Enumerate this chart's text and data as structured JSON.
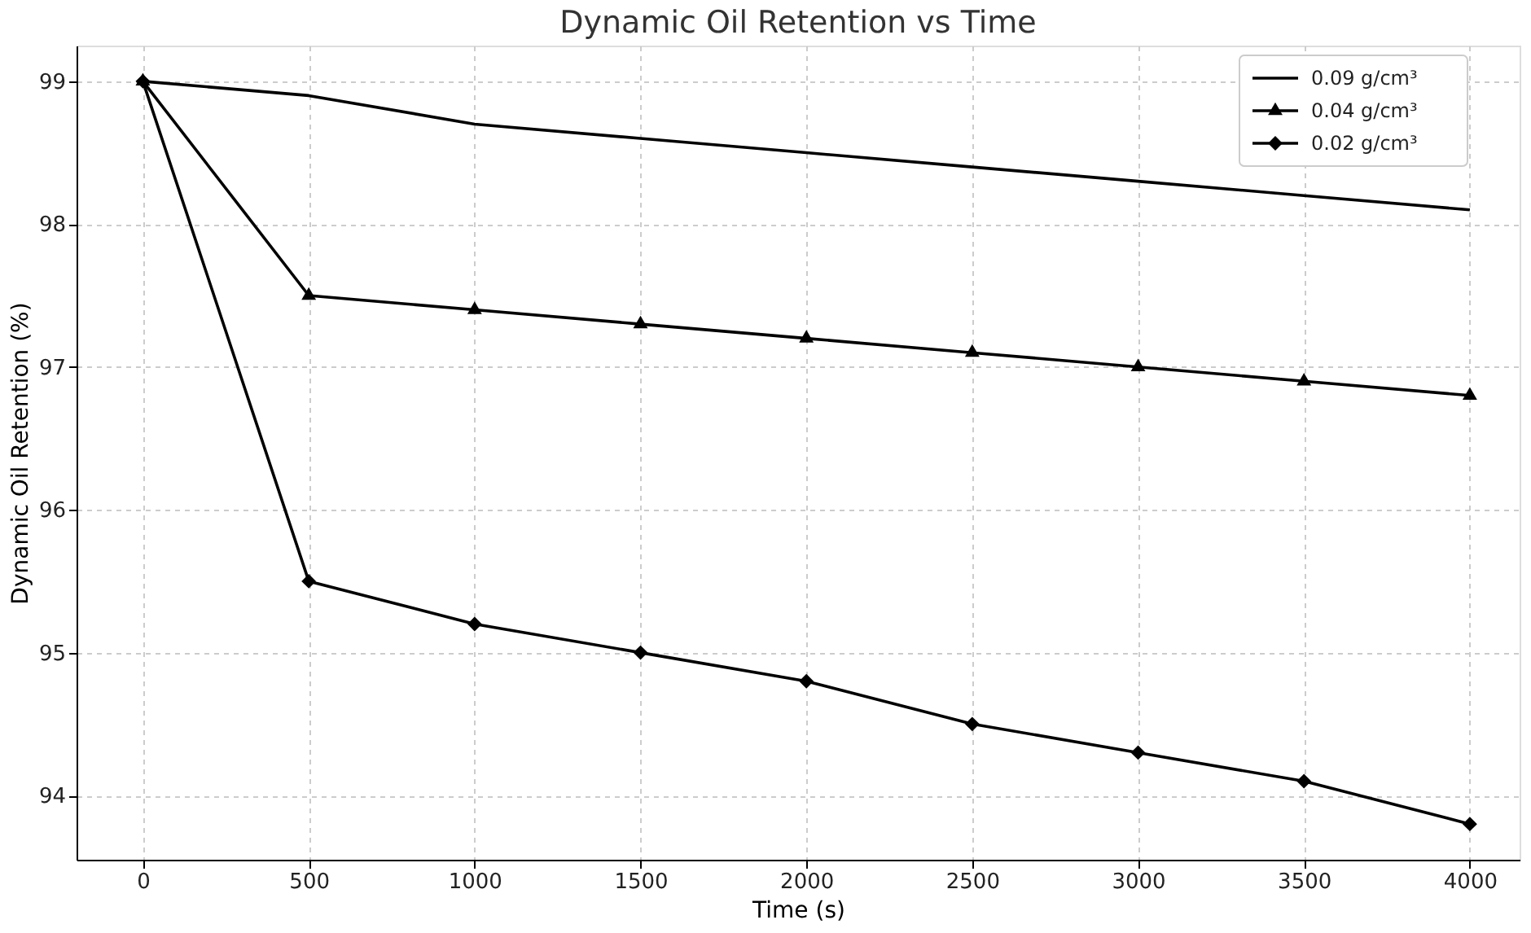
{
  "chart_data": {
    "type": "line",
    "title": "Dynamic Oil Retention vs Time",
    "xlabel": "Time (s)",
    "ylabel": "Dynamic Oil Retention (%)",
    "x": [
      0,
      500,
      1000,
      1500,
      2000,
      2500,
      3000,
      3500,
      4000
    ],
    "series": [
      {
        "name": "0.09 g/cm³",
        "color": "#000000",
        "marker": "none",
        "values": [
          99.0,
          98.9,
          98.7,
          98.6,
          98.5,
          98.4,
          98.3,
          98.2,
          98.1
        ]
      },
      {
        "name": "0.04 g/cm³",
        "color": "#000000",
        "marker": "triangle",
        "values": [
          99.0,
          97.5,
          97.4,
          97.3,
          97.2,
          97.1,
          97.0,
          96.9,
          96.8
        ]
      },
      {
        "name": "0.02 g/cm³",
        "color": "#000000",
        "marker": "diamond",
        "values": [
          99.0,
          95.5,
          95.2,
          95.0,
          94.8,
          94.5,
          94.3,
          94.1,
          93.8
        ]
      }
    ],
    "xlim": [
      -200,
      4150
    ],
    "xticks": [
      0,
      500,
      1000,
      1500,
      2000,
      2500,
      3000,
      3500,
      4000
    ],
    "ylim": [
      93.55,
      99.25
    ],
    "yticks": [
      94,
      95,
      96,
      97,
      98,
      99
    ],
    "grid": true,
    "legend": "top right",
    "line_style": "solid"
  }
}
